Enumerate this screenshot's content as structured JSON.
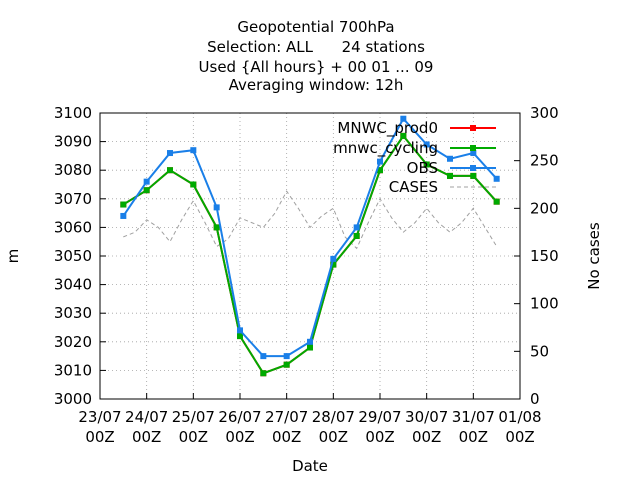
{
  "chart_data": {
    "type": "line",
    "title": [
      "Geopotential 700hPa",
      "Selection: ALL      24 stations",
      "Used {All hours} + 00 01 ... 09",
      "Averaging window: 12h"
    ],
    "xlabel": "Date",
    "ylabel": "m",
    "y2label": "No cases",
    "x_ticks": [
      {
        "line1": "23/07",
        "line2": "00Z"
      },
      {
        "line1": "24/07",
        "line2": "00Z"
      },
      {
        "line1": "25/07",
        "line2": "00Z"
      },
      {
        "line1": "26/07",
        "line2": "00Z"
      },
      {
        "line1": "27/07",
        "line2": "00Z"
      },
      {
        "line1": "28/07",
        "line2": "00Z"
      },
      {
        "line1": "29/07",
        "line2": "00Z"
      },
      {
        "line1": "30/07",
        "line2": "00Z"
      },
      {
        "line1": "31/07",
        "line2": "00Z"
      },
      {
        "line1": "01/08",
        "line2": "00Z"
      }
    ],
    "y_ticks": [
      "3000",
      "3010",
      "3020",
      "3030",
      "3040",
      "3050",
      "3060",
      "3070",
      "3080",
      "3090",
      "3100"
    ],
    "y2_ticks": [
      "0",
      "50",
      "100",
      "150",
      "200",
      "250",
      "300"
    ],
    "xlim_days": [
      0,
      9
    ],
    "ylim": [
      3000,
      3100
    ],
    "y2lim": [
      0,
      300
    ],
    "grid": true,
    "legend_position": "top-right",
    "series": [
      {
        "name": "MNWC_prod0",
        "axis": "y",
        "color": "#ff0000",
        "style": "line-points",
        "x": [
          0.5,
          1.0,
          1.5,
          2.0,
          2.5,
          3.0,
          3.5,
          4.0,
          4.5,
          5.0,
          5.5,
          6.0,
          6.5,
          7.0,
          7.5,
          8.0,
          8.5
        ],
        "y": [
          3068,
          3073,
          3080,
          3075,
          3060,
          3022,
          3009,
          3012,
          3018,
          3047,
          3057,
          3080,
          3092,
          3082,
          3078,
          3078,
          3069
        ]
      },
      {
        "name": "mnwc_cycling",
        "axis": "y",
        "color": "#00aa00",
        "style": "line-points",
        "x": [
          0.5,
          1.0,
          1.5,
          2.0,
          2.5,
          3.0,
          3.5,
          4.0,
          4.5,
          5.0,
          5.5,
          6.0,
          6.5,
          7.0,
          7.5,
          8.0,
          8.5
        ],
        "y": [
          3068,
          3073,
          3080,
          3075,
          3060,
          3022,
          3009,
          3012,
          3018,
          3047,
          3057,
          3080,
          3092,
          3082,
          3078,
          3078,
          3069
        ]
      },
      {
        "name": "OBS",
        "axis": "y",
        "color": "#1a7fe8",
        "style": "line-points",
        "x": [
          0.5,
          1.0,
          1.5,
          2.0,
          2.5,
          3.0,
          3.5,
          4.0,
          4.5,
          5.0,
          5.5,
          6.0,
          6.5,
          7.0,
          7.5,
          8.0,
          8.5
        ],
        "y": [
          3064,
          3076,
          3086,
          3087,
          3067,
          3024,
          3015,
          3015,
          3020,
          3049,
          3060,
          3083,
          3098,
          3089,
          3084,
          3086,
          3077
        ]
      },
      {
        "name": "CASES",
        "axis": "y2",
        "color": "#a0a0a0",
        "style": "dashed",
        "x": [
          0.5,
          0.75,
          1.0,
          1.25,
          1.5,
          1.75,
          2.0,
          2.25,
          2.5,
          2.75,
          3.0,
          3.25,
          3.5,
          3.75,
          4.0,
          4.25,
          4.5,
          4.75,
          5.0,
          5.25,
          5.5,
          5.75,
          6.0,
          6.25,
          6.5,
          6.75,
          7.0,
          7.25,
          7.5,
          7.75,
          8.0,
          8.25,
          8.5
        ],
        "y": [
          170,
          175,
          188,
          180,
          165,
          188,
          208,
          185,
          160,
          168,
          190,
          185,
          180,
          195,
          218,
          200,
          180,
          192,
          200,
          170,
          158,
          185,
          210,
          190,
          175,
          185,
          200,
          185,
          175,
          185,
          200,
          180,
          160
        ]
      }
    ]
  }
}
